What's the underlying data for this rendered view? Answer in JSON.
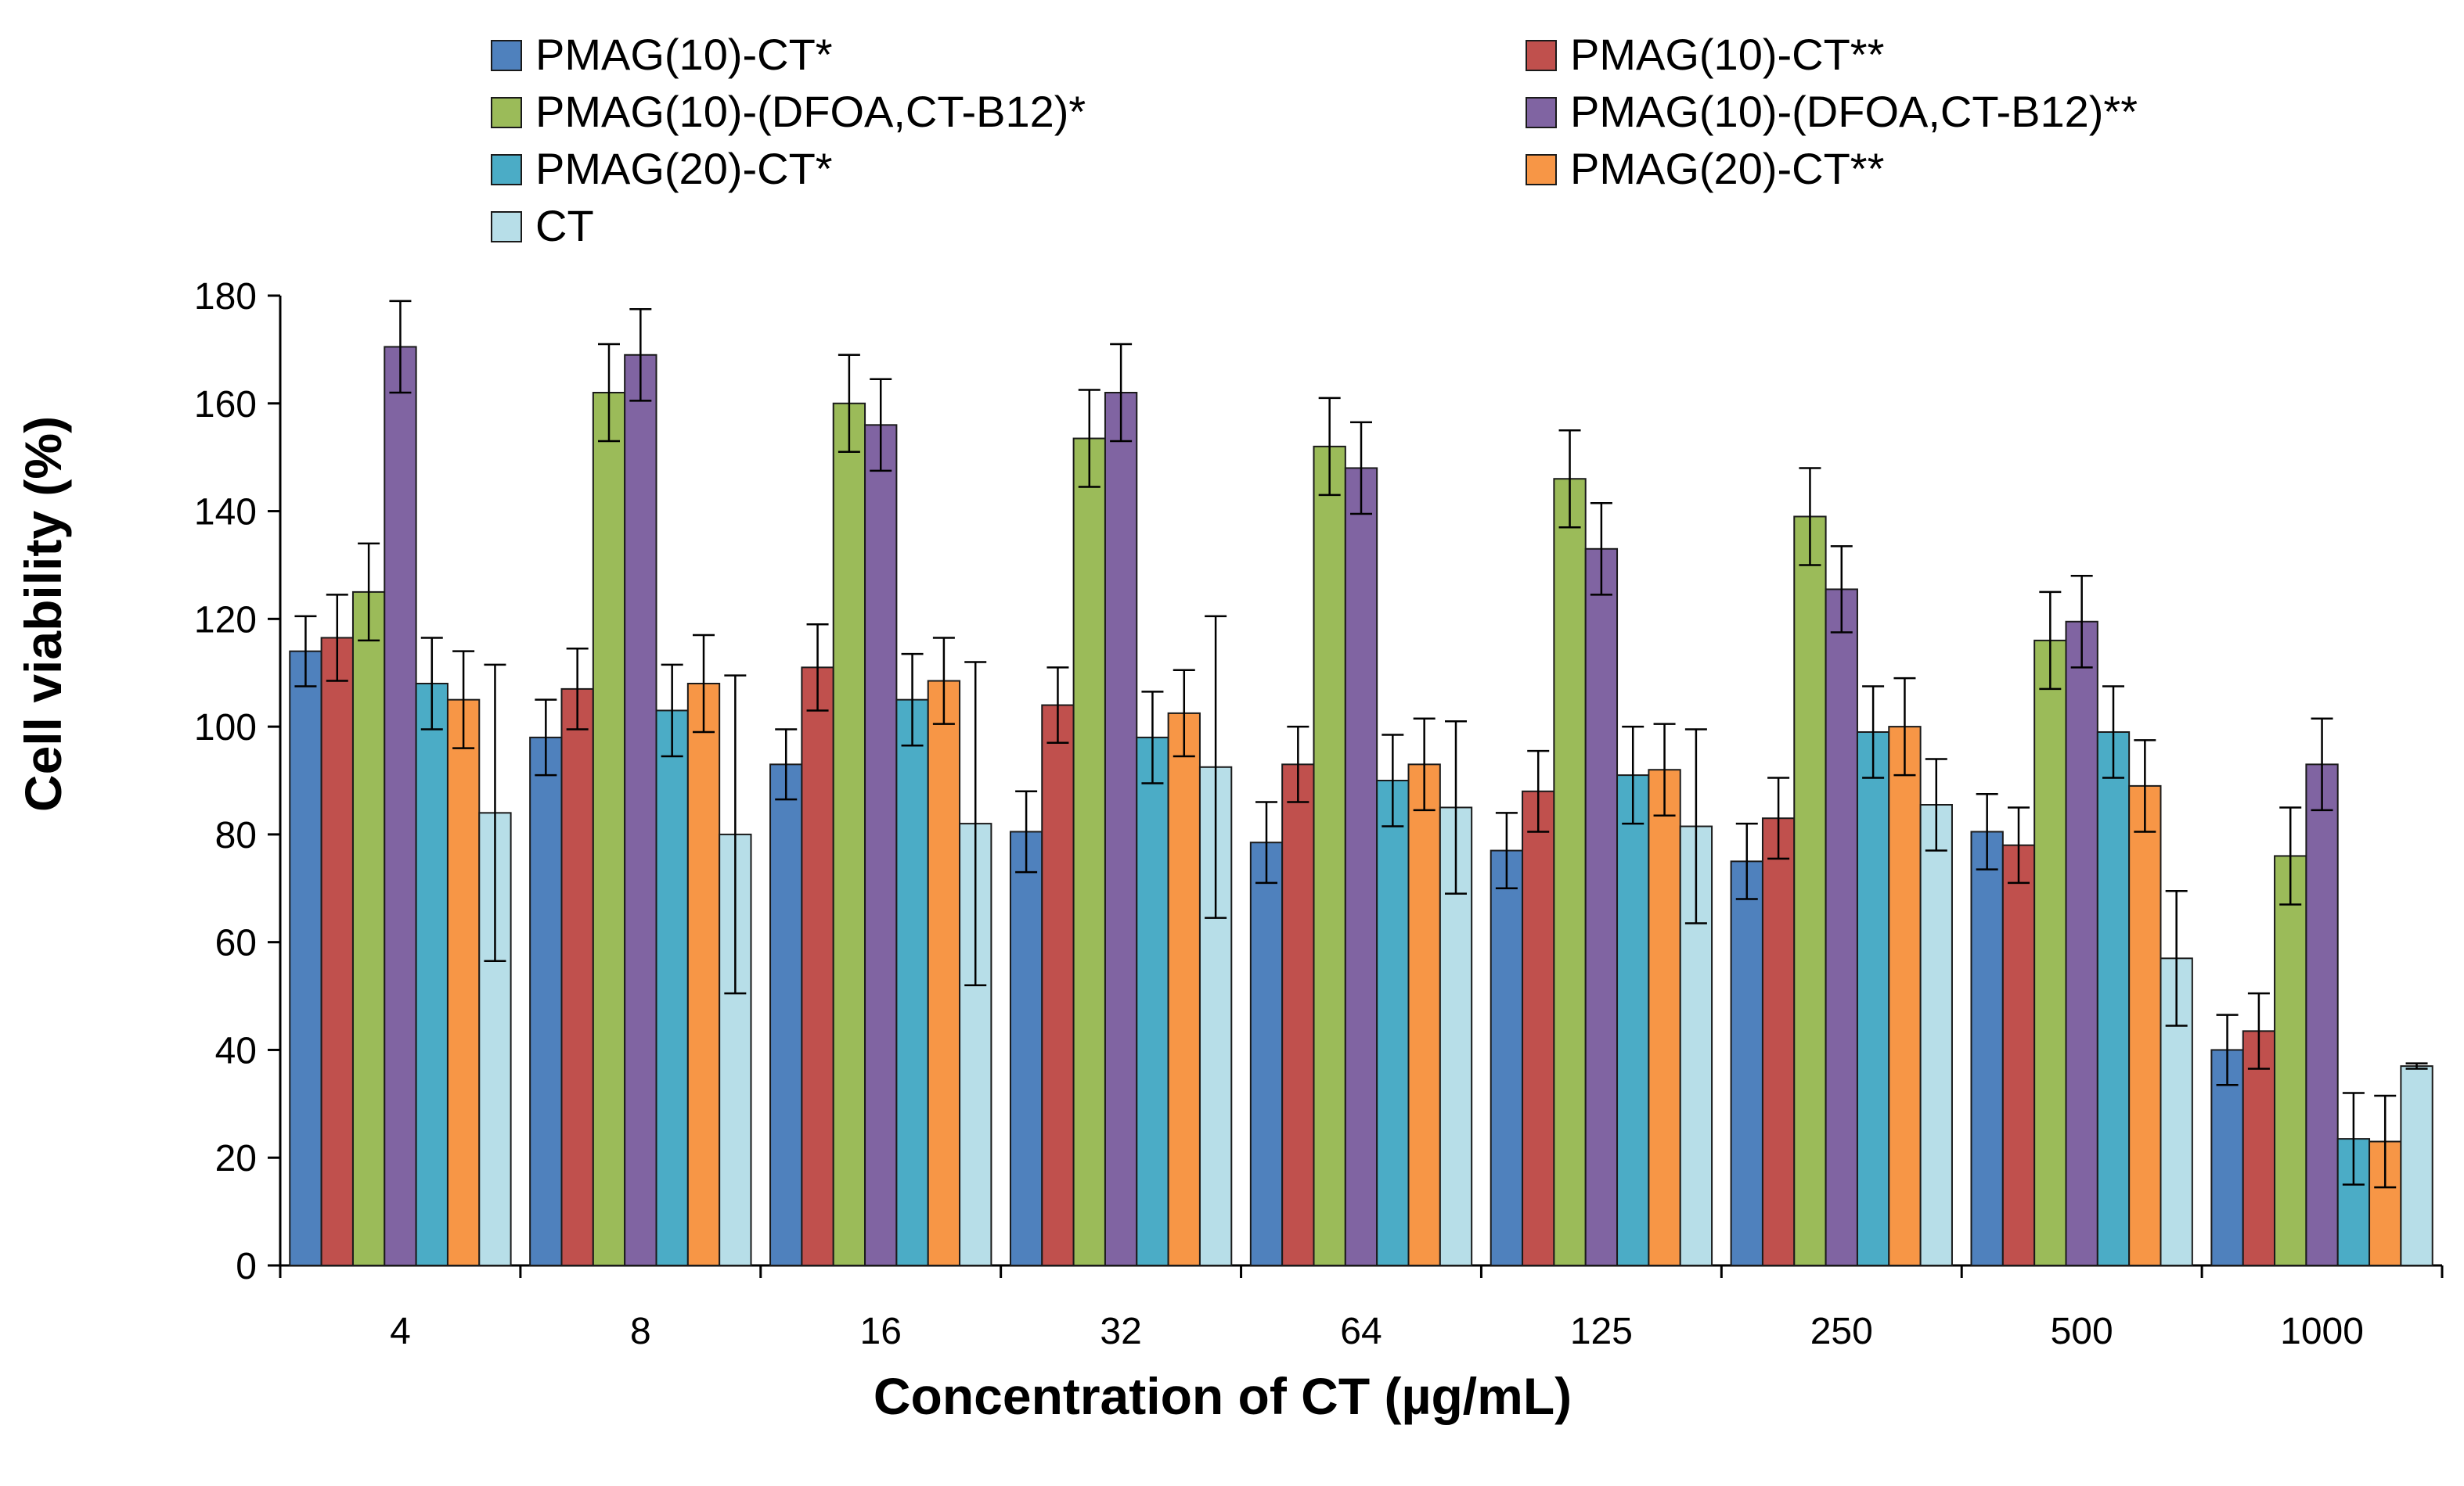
{
  "chart_data": {
    "type": "bar",
    "xlabel": "Concentration of CT (µg/mL)",
    "ylabel": "Cell viability (%)",
    "ylim": [
      0,
      180
    ],
    "yticks": [
      0,
      20,
      40,
      60,
      80,
      100,
      120,
      140,
      160,
      180
    ],
    "categories": [
      "4",
      "8",
      "16",
      "32",
      "64",
      "125",
      "250",
      "500",
      "1000"
    ],
    "grid": false,
    "legend_position": "top",
    "series": [
      {
        "name": "PMAG(10)-CT*",
        "color": "#4F81BD",
        "values": [
          114,
          98,
          93,
          80.5,
          78.5,
          77,
          75,
          80.5,
          40
        ],
        "errors": [
          6.5,
          7,
          6.5,
          7.5,
          7.5,
          7,
          7,
          7,
          6.5
        ]
      },
      {
        "name": "PMAG(10)-CT**",
        "color": "#C0504D",
        "values": [
          116.5,
          107,
          111,
          104,
          93,
          88,
          83,
          78,
          43.5
        ],
        "errors": [
          8,
          7.5,
          8,
          7,
          7,
          7.5,
          7.5,
          7,
          7
        ]
      },
      {
        "name": "PMAG(10)-(DFOA,CT-B12)*",
        "color": "#9BBB59",
        "values": [
          125,
          162,
          160,
          153.5,
          152,
          146,
          139,
          116,
          76
        ],
        "errors": [
          9,
          9,
          9,
          9,
          9,
          9,
          9,
          9,
          9
        ]
      },
      {
        "name": "PMAG(10)-(DFOA,CT-B12)**",
        "color": "#8064A2",
        "values": [
          170.5,
          169,
          156,
          162,
          148,
          133,
          125.5,
          119.5,
          93
        ],
        "errors": [
          8.5,
          8.5,
          8.5,
          9,
          8.5,
          8.5,
          8,
          8.5,
          8.5
        ]
      },
      {
        "name": "PMAG(20)-CT*",
        "color": "#4BACC6",
        "values": [
          108,
          103,
          105,
          98,
          90,
          91,
          99,
          99,
          23.5
        ],
        "errors": [
          8.5,
          8.5,
          8.5,
          8.5,
          8.5,
          9,
          8.5,
          8.5,
          8.5
        ]
      },
      {
        "name": "PMAG(20)-CT**",
        "color": "#F79646",
        "values": [
          105,
          108,
          108.5,
          102.5,
          93,
          92,
          100,
          89,
          23
        ],
        "errors": [
          9,
          9,
          8,
          8,
          8.5,
          8.5,
          9,
          8.5,
          8.5
        ]
      },
      {
        "name": "CT",
        "color": "#B7DEE8",
        "values": [
          84,
          80,
          82,
          92.5,
          85,
          81.5,
          85.5,
          57,
          37
        ],
        "errors": [
          27.5,
          29.5,
          30,
          28,
          16,
          18,
          8.5,
          12.5,
          0.5
        ]
      }
    ]
  }
}
